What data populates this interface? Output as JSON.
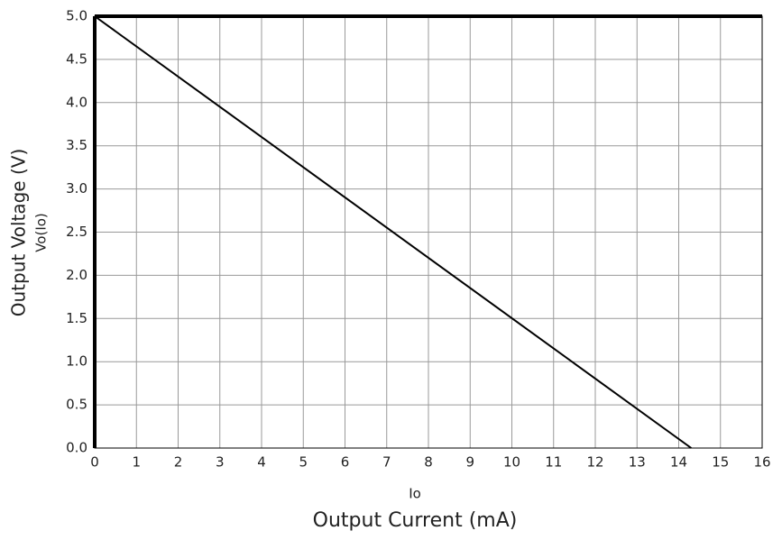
{
  "chart_data": {
    "type": "line",
    "y_label": "Output Voltage (V)",
    "y_symbol": "Vo(Io)",
    "x_label": "Output Current (mA)",
    "x_symbol": "Io",
    "x": [
      0,
      14.3
    ],
    "series": [
      {
        "name": "Vo(Io)",
        "color": "#000000",
        "values": [
          5.0,
          0.0
        ]
      }
    ],
    "xlim": [
      0,
      16
    ],
    "xticks": [
      0,
      1,
      2,
      3,
      4,
      5,
      6,
      7,
      8,
      9,
      10,
      11,
      12,
      13,
      14,
      15,
      16
    ],
    "ylim": [
      0,
      5
    ],
    "yticks": [
      {
        "value": 0,
        "label": "0.0"
      },
      {
        "value": 0.5,
        "label": "0.5"
      },
      {
        "value": 1,
        "label": "1.0"
      },
      {
        "value": 1.5,
        "label": "1.5"
      },
      {
        "value": 2,
        "label": "2.0"
      },
      {
        "value": 2.5,
        "label": "2.5"
      },
      {
        "value": 3,
        "label": "3.0"
      },
      {
        "value": 3.5,
        "label": "3.5"
      },
      {
        "value": 4,
        "label": "4.0"
      },
      {
        "value": 4.5,
        "label": "4.5"
      },
      {
        "value": 5,
        "label": "5.0"
      }
    ],
    "grid": true
  }
}
